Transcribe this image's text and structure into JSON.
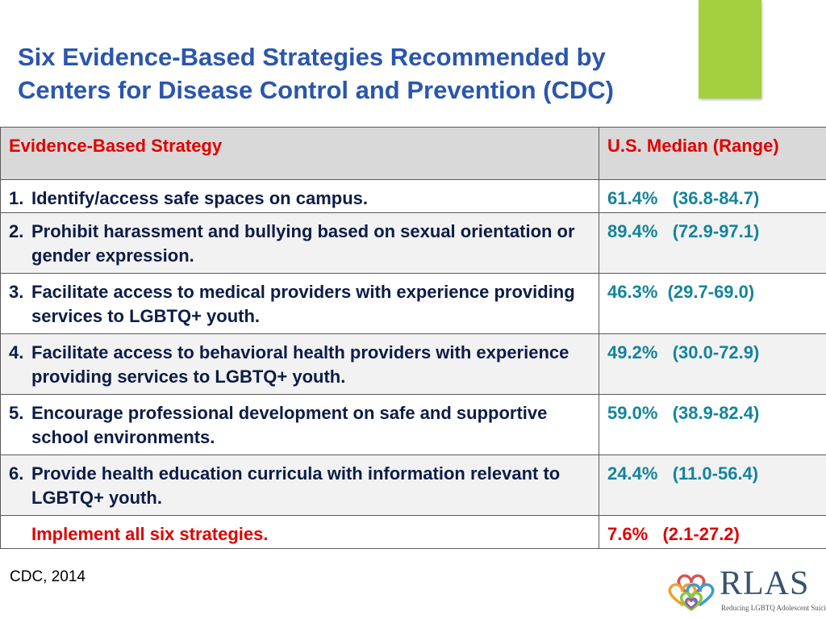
{
  "slide": {
    "title": "Six Evidence-Based Strategies Recommended by Centers for Disease Control and Prevention (CDC)",
    "accent_color": "#a4cf3f",
    "title_color": "#2a56ad"
  },
  "table": {
    "headers": {
      "strategy": "Evidence-Based Strategy",
      "median": "U.S. Median (Range)"
    },
    "rows": [
      {
        "num": "1.",
        "text": "Identify/access safe spaces on campus.",
        "median": "61.4%   (36.8-84.7)"
      },
      {
        "num": "2.",
        "text": "Prohibit harassment and bullying based on sexual orientation or gender expression.",
        "median": "89.4%   (72.9-97.1)"
      },
      {
        "num": "3.",
        "text": "Facilitate access to medical providers with experience providing services to LGBTQ+ youth.",
        "median": "46.3%  (29.7-69.0)"
      },
      {
        "num": "4.",
        "text": "Facilitate access to behavioral health providers with experience providing services to LGBTQ+ youth.",
        "median": "49.2%   (30.0-72.9)"
      },
      {
        "num": "5.",
        "text": "Encourage professional development on safe and supportive school environments.",
        "median": "59.0%   (38.9-82.4)"
      },
      {
        "num": "6.",
        "text": "Provide health education curricula with information relevant to LGBTQ+ youth.",
        "median": "24.4%   (11.0-56.4)"
      }
    ],
    "all": {
      "text": "Implement all six strategies.",
      "median": "7.6%   (2.1-27.2)"
    }
  },
  "footer": {
    "citation": "CDC, 2014",
    "logo": {
      "wordmark": "RLAS",
      "tagline": "Reducing LGBTQ Adolescent Suicide"
    }
  }
}
